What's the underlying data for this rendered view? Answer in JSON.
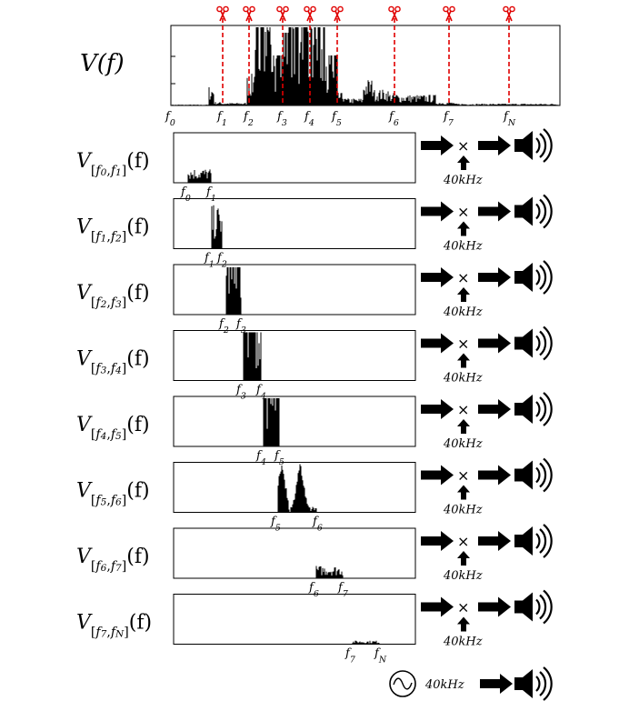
{
  "main_spectrum": {
    "label": "V(f)",
    "markers": [
      "f0",
      "f1",
      "f2",
      "f3",
      "f4",
      "f5",
      "f6",
      "f7",
      "fN"
    ],
    "cut_markers": [
      "f1",
      "f2",
      "f3",
      "f4",
      "f5",
      "f6",
      "f7",
      "fN"
    ],
    "cut_icon": "scissors-icon",
    "cut_color": "#e00000"
  },
  "bands": [
    {
      "label": "V[f0,f1](f)",
      "lo": "f0",
      "hi": "f1",
      "carrier": "40kHz"
    },
    {
      "label": "V[f1,f2](f)",
      "lo": "f1",
      "hi": "f2",
      "carrier": "40kHz"
    },
    {
      "label": "V[f2,f3](f)",
      "lo": "f2",
      "hi": "f3",
      "carrier": "40kHz"
    },
    {
      "label": "V[f3,f4](f)",
      "lo": "f3",
      "hi": "f4",
      "carrier": "40kHz"
    },
    {
      "label": "V[f4,f5](f)",
      "lo": "f4",
      "hi": "f5",
      "carrier": "40kHz"
    },
    {
      "label": "V[f5,f6](f)",
      "lo": "f5",
      "hi": "f6",
      "carrier": "40kHz"
    },
    {
      "label": "V[f6,f7](f)",
      "lo": "f6",
      "hi": "f7",
      "carrier": "40kHz"
    },
    {
      "label": "V[f7,fN](f)",
      "lo": "f7",
      "hi": "fN",
      "carrier": "40kHz"
    }
  ],
  "carrier_row": {
    "label": "40kHz",
    "source_icon": "sine-source-icon",
    "output_icon": "speaker-icon"
  },
  "icons": {
    "arrow": "arrow-right-icon",
    "up_arrow": "arrow-up-icon",
    "multiply": "multiply-icon",
    "speaker": "speaker-icon"
  }
}
